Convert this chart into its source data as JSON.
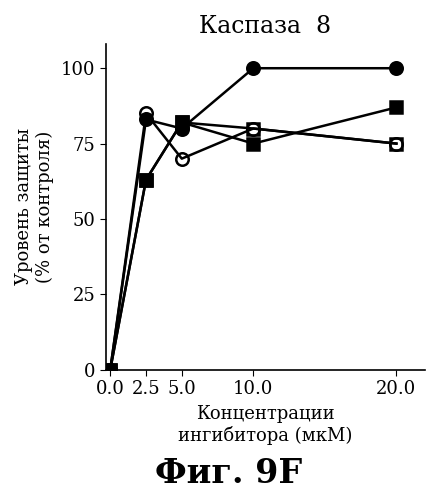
{
  "title": "Каспаза  8",
  "xlabel_line1": "Концентрации",
  "xlabel_line2": "ингибитора (мкМ)",
  "ylabel_line1": "Уровень защиты",
  "ylabel_line2": "(% от контроля)",
  "caption": "Фиг. 9F",
  "x": [
    0,
    2.5,
    5,
    10,
    20
  ],
  "series": [
    {
      "label": "filled_circle",
      "y": [
        0,
        83,
        80,
        100,
        100
      ],
      "marker": "o",
      "fillstyle": "full",
      "color": "black",
      "linewidth": 1.8,
      "markersize": 9
    },
    {
      "label": "open_circle",
      "y": [
        0,
        85,
        70,
        80,
        75
      ],
      "marker": "o",
      "fillstyle": "none",
      "color": "black",
      "linewidth": 1.8,
      "markersize": 9
    },
    {
      "label": "filled_square",
      "y": [
        0,
        63,
        82,
        75,
        87
      ],
      "marker": "s",
      "fillstyle": "full",
      "color": "black",
      "linewidth": 1.8,
      "markersize": 8
    },
    {
      "label": "open_square",
      "y": [
        0,
        63,
        82,
        80,
        75
      ],
      "marker": "s",
      "fillstyle": "none",
      "color": "black",
      "linewidth": 1.8,
      "markersize": 8
    }
  ],
  "xlim": [
    -0.3,
    22
  ],
  "ylim": [
    0,
    108
  ],
  "yticks": [
    0,
    25,
    50,
    75,
    100
  ],
  "xticks": [
    0,
    2.5,
    5,
    10,
    20
  ],
  "background_color": "#ffffff",
  "title_fontsize": 17,
  "axis_label_fontsize": 13,
  "tick_fontsize": 13,
  "caption_fontsize": 24
}
